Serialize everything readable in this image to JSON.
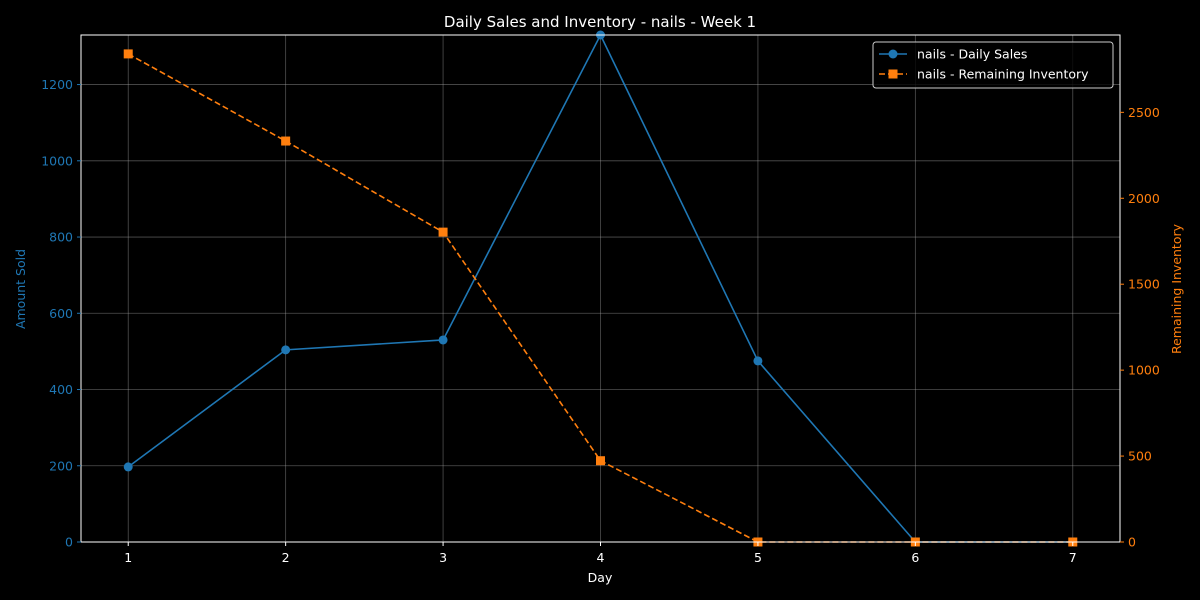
{
  "chart_data": {
    "type": "line",
    "title": "Daily Sales and Inventory - nails - Week 1",
    "xlabel": "Day",
    "ylabel_left": "Amount Sold",
    "ylabel_right": "Remaining Inventory",
    "x": [
      1,
      2,
      3,
      4,
      5,
      6,
      7
    ],
    "x_ticks": [
      "1",
      "2",
      "3",
      "4",
      "5",
      "6",
      "7"
    ],
    "xlim": [
      0.7,
      7.3
    ],
    "ylim_left": [
      0,
      1330
    ],
    "ylim_right": [
      0,
      2950
    ],
    "y_ticks_left": [
      0,
      200,
      400,
      600,
      800,
      1000,
      1200
    ],
    "y_ticks_right": [
      0,
      500,
      1000,
      1500,
      2000,
      2500
    ],
    "grid": true,
    "legend_position": "top-right",
    "series": [
      {
        "name": "nails - Daily Sales",
        "axis": "left",
        "color": "#1f77b4",
        "marker": "circle",
        "line_style": "solid",
        "values": [
          197,
          504,
          530,
          1330,
          475,
          0,
          0
        ]
      },
      {
        "name": "nails - Remaining Inventory",
        "axis": "right",
        "color": "#ff7f0e",
        "marker": "square",
        "line_style": "dashed",
        "values": [
          2840,
          2333,
          1803,
          473,
          0,
          0,
          0
        ]
      }
    ]
  }
}
